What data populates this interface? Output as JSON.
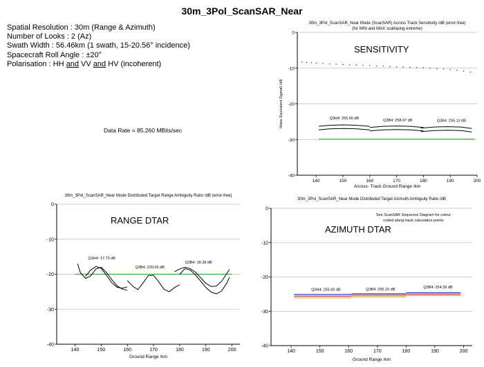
{
  "page": {
    "title": "30m_3Pol_ScanSAR_Near",
    "params": [
      "Spatial Resolution  : 30m (Range & Azimuth)",
      "Number of Looks : 2 (Az)",
      "Swath Width : 56.46km (1 swath,  15-20.56° incidence)",
      "Spacecraft Roll Angle : ±20°"
    ],
    "polarisation": {
      "prefix": "Polarisation : HH ",
      "and1": "and",
      "mid": " VV ",
      "and2": "and",
      "suffix": " HV (incoherent)"
    },
    "data_rate": "Data Rate = 85.260 MBits/sec"
  },
  "colors": {
    "axis": "#000000",
    "grid": "#bfbfbf",
    "dots": "#444444",
    "threshold": "#33aa33",
    "qdbm_lines": "#000000",
    "az_line_1": "#3333cc",
    "az_line_2": "#cc3333",
    "az_line_3": "#ccaa22"
  },
  "chart_data": [
    {
      "id": "sensitivity",
      "type": "line",
      "title": "30m_3Pol_ScanSAR_Near Mode (ScanSAR) Across Track Sensitivity /dB (error-free)",
      "subtitle": "(for MIN and MAX scalloping extreme)",
      "overlay_label": "SENSITIVITY",
      "xlabel": "Across- Track Ground Range /km",
      "ylabel": "Noise Equivalent Sigma0 /dB",
      "xlim": [
        133,
        200
      ],
      "ylim": [
        -40,
        0
      ],
      "xticks": [
        140,
        150,
        160,
        170,
        180,
        190,
        200
      ],
      "yticks": [
        0,
        -10,
        -20,
        -30,
        -40
      ],
      "grid": true,
      "series": [
        {
          "style": "dotted",
          "x": [
            133,
            140,
            150,
            160,
            170,
            180,
            190,
            200
          ],
          "y": [
            -8.2,
            -8.6,
            -9.0,
            -9.3,
            -9.6,
            -9.9,
            -10.4,
            -11.3
          ]
        },
        {
          "style": "threshold",
          "x": [
            141,
            199
          ],
          "y": [
            -29.9,
            -29.9
          ]
        },
        {
          "style": "band",
          "x": [
            141,
            145,
            150,
            155,
            160
          ],
          "y": [
            -27.3,
            -27.0,
            -26.9,
            -27.0,
            -27.3
          ]
        },
        {
          "style": "band",
          "x": [
            141,
            145,
            150,
            155,
            160
          ],
          "y": [
            -26.3,
            -26.0,
            -25.9,
            -26.0,
            -26.3
          ]
        },
        {
          "style": "band",
          "x": [
            160,
            165,
            170,
            175,
            180
          ],
          "y": [
            -27.6,
            -27.3,
            -27.2,
            -27.3,
            -27.6
          ]
        },
        {
          "style": "band",
          "x": [
            160,
            165,
            170,
            175,
            180
          ],
          "y": [
            -26.6,
            -26.3,
            -26.2,
            -26.3,
            -26.6
          ]
        },
        {
          "style": "band",
          "x": [
            179,
            184,
            189,
            194,
            198
          ],
          "y": [
            -27.8,
            -27.5,
            -27.4,
            -27.5,
            -27.9
          ]
        },
        {
          "style": "band",
          "x": [
            179,
            184,
            189,
            194,
            198
          ],
          "y": [
            -26.8,
            -26.5,
            -26.4,
            -26.5,
            -26.9
          ]
        }
      ],
      "annotations": [
        {
          "text": "Q3H4: 255.60 dB",
          "x": 145,
          "y": -24.3
        },
        {
          "text": "Q3B4: 258.97 dB",
          "x": 165,
          "y": -24.9
        },
        {
          "text": "Q3B4: 255.13 dB",
          "x": 185,
          "y": -25.0
        }
      ]
    },
    {
      "id": "range-dtar",
      "type": "line",
      "title": "30m_3Pol_ScanSAR_Near Mode Distributed Target Range Ambiguity Ratio /dB (error-free)",
      "overlay_label": "RANGE DTAR",
      "xlabel": "Ground Range /km",
      "ylabel": "",
      "xlim": [
        133,
        203
      ],
      "ylim": [
        -40,
        0
      ],
      "xticks": [
        140,
        150,
        160,
        170,
        180,
        190,
        200
      ],
      "yticks": [
        0,
        -10,
        -20,
        -30,
        -40
      ],
      "grid": true,
      "series": [
        {
          "style": "threshold",
          "x": [
            140,
            200
          ],
          "y": [
            -20,
            -20
          ]
        },
        {
          "style": "curve",
          "x": [
            141,
            142,
            144,
            146,
            148,
            150,
            152,
            154,
            156,
            158,
            160
          ],
          "y": [
            -17,
            -19.5,
            -21.2,
            -20.5,
            -18.5,
            -18.0,
            -19.5,
            -21.5,
            -23.3,
            -24.2,
            -24.6
          ]
        },
        {
          "style": "curve",
          "x": [
            144,
            146,
            148,
            150,
            152,
            154,
            156,
            158,
            160
          ],
          "y": [
            -20.6,
            -18.8,
            -17.8,
            -18.3,
            -20.3,
            -22.4,
            -23.7,
            -24.0,
            -23.6
          ]
        },
        {
          "style": "curve",
          "x": [
            160,
            162,
            164,
            166,
            168,
            170,
            172,
            174,
            176,
            178,
            180
          ],
          "y": [
            -21.8,
            -23.4,
            -24.4,
            -22.5,
            -20.4,
            -20.3,
            -22.2,
            -24.3,
            -25.0,
            -23.8,
            -23.0
          ]
        },
        {
          "style": "curve",
          "x": [
            178,
            180,
            182,
            184,
            186,
            188,
            190,
            192,
            194,
            196,
            198,
            199
          ],
          "y": [
            -19.3,
            -18.5,
            -18.0,
            -18.4,
            -19.4,
            -21.0,
            -22.6,
            -23.5,
            -23.4,
            -22.0,
            -19.8,
            -18.6
          ]
        },
        {
          "style": "curve",
          "x": [
            180,
            182,
            184,
            186,
            188,
            190,
            192,
            194,
            196,
            198,
            199
          ],
          "y": [
            -20.0,
            -18.4,
            -18.8,
            -20.2,
            -22.0,
            -23.8,
            -25.1,
            -25.6,
            -24.8,
            -22.5,
            -20.9
          ]
        }
      ],
      "annotations": [
        {
          "text": "Q3H4: 17.73 dB",
          "x": 145,
          "y": -15.8
        },
        {
          "text": "Q3B4: 220.06 dB",
          "x": 163,
          "y": -18.3
        },
        {
          "text": "Q3B4: 18.38 dB",
          "x": 182,
          "y": -16.9
        }
      ]
    },
    {
      "id": "azimuth-dtar",
      "type": "line",
      "title": "30m_3Pol_ScanSAR_Near Mode Distributed Target Azimuth Ambiguity Ratio /dB",
      "overlay_label": "AZIMUTH DTAR",
      "note_line1": "See ScanSAR Sequence Diagram for colour",
      "note_line2": "coded along-track calculation points",
      "xlabel": "Ground Range /km",
      "ylabel": "",
      "xlim": [
        133,
        203
      ],
      "ylim": [
        -40,
        0
      ],
      "xticks": [
        140,
        150,
        160,
        170,
        180,
        190,
        200
      ],
      "yticks": [
        0,
        -10,
        -20,
        -30,
        -40
      ],
      "grid": true,
      "series": [
        {
          "style": "az1",
          "x": [
            141,
            161
          ],
          "y": [
            -25.1,
            -25.1
          ]
        },
        {
          "style": "az2",
          "x": [
            141,
            161
          ],
          "y": [
            -25.6,
            -25.6
          ]
        },
        {
          "style": "az3",
          "x": [
            141,
            161
          ],
          "y": [
            -26.1,
            -26.1
          ]
        },
        {
          "style": "az1",
          "x": [
            161,
            180
          ],
          "y": [
            -24.9,
            -24.9
          ]
        },
        {
          "style": "az2",
          "x": [
            161,
            180
          ],
          "y": [
            -25.3,
            -25.3
          ]
        },
        {
          "style": "az3",
          "x": [
            161,
            180
          ],
          "y": [
            -25.8,
            -25.8
          ]
        },
        {
          "style": "az1",
          "x": [
            180,
            199
          ],
          "y": [
            -24.6,
            -24.6
          ]
        },
        {
          "style": "az2",
          "x": [
            180,
            199
          ],
          "y": [
            -25.0,
            -25.0
          ]
        },
        {
          "style": "az3",
          "x": [
            180,
            199
          ],
          "y": [
            -25.4,
            -25.4
          ]
        }
      ],
      "annotations": [
        {
          "text": "Q3H4: 255.60 dB",
          "x": 147,
          "y": -24.0
        },
        {
          "text": "Q3B4: 255.15 dB",
          "x": 166,
          "y": -23.9
        },
        {
          "text": "Q3B4: 254.39 dB",
          "x": 186,
          "y": -23.3
        }
      ]
    }
  ]
}
